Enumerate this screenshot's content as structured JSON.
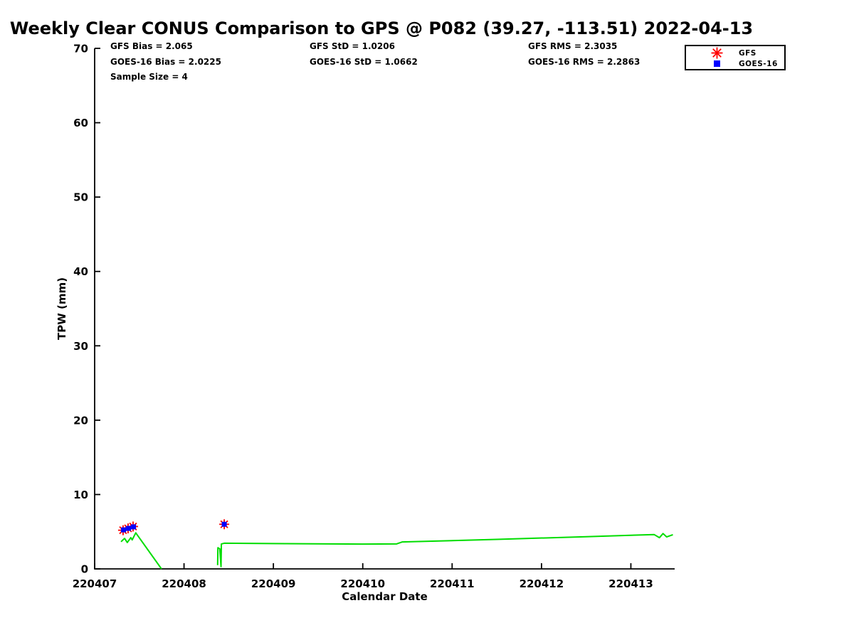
{
  "title": "Weekly Clear CONUS Comparison to GPS @ P082 (39.27, -113.51) 2022-04-13",
  "stats": {
    "gfs_bias": "GFS Bias = 2.065",
    "gfs_std": "GFS StD = 1.0206",
    "gfs_rms": "GFS RMS = 2.3035",
    "goes16_bias": "GOES-16 Bias = 2.0225",
    "goes16_std": "GOES-16 StD = 1.0662",
    "goes16_rms": "GOES-16 RMS = 2.2863",
    "sample_size": "Sample Size = 4"
  },
  "legend": {
    "items": [
      {
        "label": "GFS",
        "marker": "asterisk",
        "color": "#ff0000"
      },
      {
        "label": "GOES-16",
        "marker": "square",
        "color": "#0000ff"
      }
    ]
  },
  "chart_data": {
    "type": "line",
    "title": "Weekly Clear CONUS Comparison to GPS @ P082 (39.27, -113.51) 2022-04-13",
    "xlabel": "Calendar Date",
    "ylabel": "TPW (mm)",
    "xlim": [
      220407,
      220413.49
    ],
    "ylim": [
      0,
      70
    ],
    "xticks": [
      220407,
      220408,
      220409,
      220410,
      220411,
      220412,
      220413
    ],
    "yticks": [
      0,
      10,
      20,
      30,
      40,
      50,
      60,
      70
    ],
    "grid": false,
    "legend_position": "upper right",
    "axis_color": "#000000",
    "series": [
      {
        "name": "GPS",
        "type": "line",
        "color": "#00dd00",
        "segments": [
          [
            [
              220407.295,
              3.65
            ],
            [
              220407.335,
              4.1
            ],
            [
              220407.365,
              3.55
            ],
            [
              220407.405,
              4.2
            ],
            [
              220407.42,
              3.9
            ],
            [
              220407.46,
              4.85
            ],
            [
              220407.748,
              0.0
            ]
          ],
          [
            [
              220408.376,
              0.5
            ],
            [
              220408.379,
              2.85
            ],
            [
              220408.4,
              2.7
            ],
            [
              220408.414,
              0.3
            ],
            [
              220408.418,
              3.35
            ],
            [
              220408.45,
              3.45
            ],
            [
              220409.3,
              3.38
            ],
            [
              220410.0,
              3.33
            ],
            [
              220410.38,
              3.36
            ],
            [
              220410.44,
              3.62
            ],
            [
              220411.5,
              3.97
            ],
            [
              220412.5,
              4.33
            ],
            [
              220413.26,
              4.62
            ],
            [
              220413.32,
              4.2
            ],
            [
              220413.36,
              4.75
            ],
            [
              220413.4,
              4.3
            ],
            [
              220413.47,
              4.6
            ]
          ]
        ]
      },
      {
        "name": "GFS",
        "type": "marker",
        "marker": "asterisk",
        "color": "#ff0000",
        "points": [
          [
            220407.318,
            5.2
          ],
          [
            220407.374,
            5.45
          ],
          [
            220407.43,
            5.7
          ],
          [
            220408.45,
            6.0
          ]
        ]
      },
      {
        "name": "GOES-16",
        "type": "marker",
        "marker": "square",
        "color": "#0000ff",
        "points": [
          [
            220407.323,
            5.25
          ],
          [
            220407.379,
            5.45
          ],
          [
            220407.435,
            5.65
          ],
          [
            220408.45,
            6.0
          ]
        ]
      }
    ]
  }
}
